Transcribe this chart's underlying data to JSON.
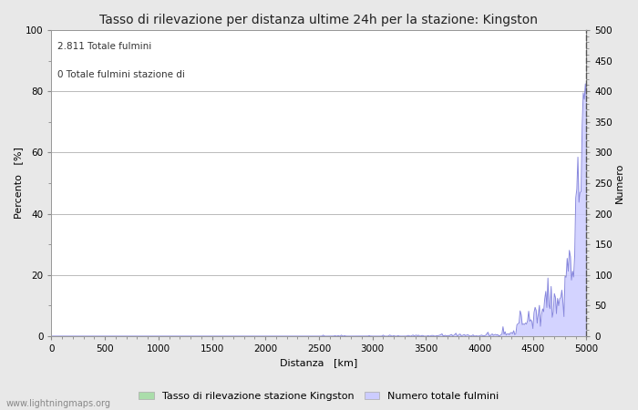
{
  "title": "Tasso di rilevazione per distanza ultime 24h per la stazione: Kingston",
  "xlabel": "Distanza   [km]",
  "ylabel_left": "Percento   [%]",
  "ylabel_right": "Numero",
  "annotation_line1": "2.811 Totale fulmini",
  "annotation_line2": "0 Totale fulmini stazione di",
  "xlim": [
    0,
    5000
  ],
  "ylim_left": [
    0,
    100
  ],
  "ylim_right": [
    0,
    500
  ],
  "xticks": [
    0,
    500,
    1000,
    1500,
    2000,
    2500,
    3000,
    3500,
    4000,
    4500,
    5000
  ],
  "yticks_left": [
    0,
    20,
    40,
    60,
    80,
    100
  ],
  "yticks_right": [
    0,
    50,
    100,
    150,
    200,
    250,
    300,
    350,
    400,
    450,
    500
  ],
  "legend_label_green": "Tasso di rilevazione stazione Kingston",
  "legend_label_blue": "Numero totale fulmini",
  "watermark": "www.lightningmaps.org",
  "bg_color": "#e8e8e8",
  "plot_bg_color": "#ffffff",
  "grid_color": "#b0b0b0",
  "line_color": "#8888dd",
  "fill_color": "#ccccff",
  "green_fill_color": "#aaddaa",
  "title_fontsize": 10,
  "axis_fontsize": 8,
  "tick_fontsize": 7.5,
  "legend_fontsize": 8,
  "watermark_fontsize": 7,
  "figwidth": 7.0,
  "figheight": 4.5,
  "dpi": 100
}
